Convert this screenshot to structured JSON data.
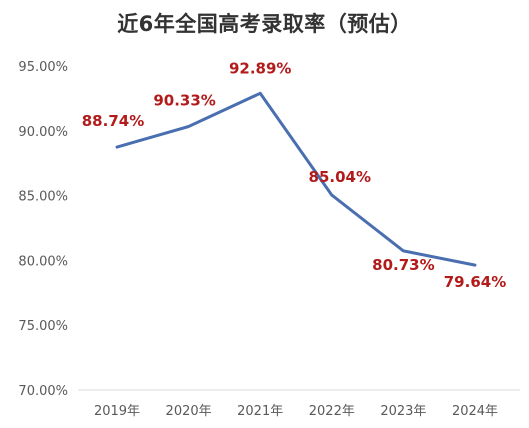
{
  "chart_data": {
    "type": "line",
    "title": "近6年全国高考录取率（预估）",
    "xlabel": "",
    "ylabel": "",
    "categories": [
      "2019年",
      "2020年",
      "2021年",
      "2022年",
      "2023年",
      "2024年"
    ],
    "series": [
      {
        "values": [
          88.74,
          90.33,
          92.89,
          85.04,
          80.73,
          79.64
        ]
      }
    ],
    "data_labels": [
      "88.74%",
      "90.33%",
      "92.89%",
      "85.04%",
      "80.73%",
      "79.64%"
    ],
    "ylim": [
      70,
      95
    ],
    "yticks": [
      "70.00%",
      "75.00%",
      "80.00%",
      "85.00%",
      "90.00%",
      "95.00%"
    ],
    "grid": false,
    "legend": "none",
    "colors": {
      "line": "#4a6fb0",
      "label": "#b31b1b",
      "axis": "#d9d9d9",
      "tick": "#595959"
    }
  }
}
